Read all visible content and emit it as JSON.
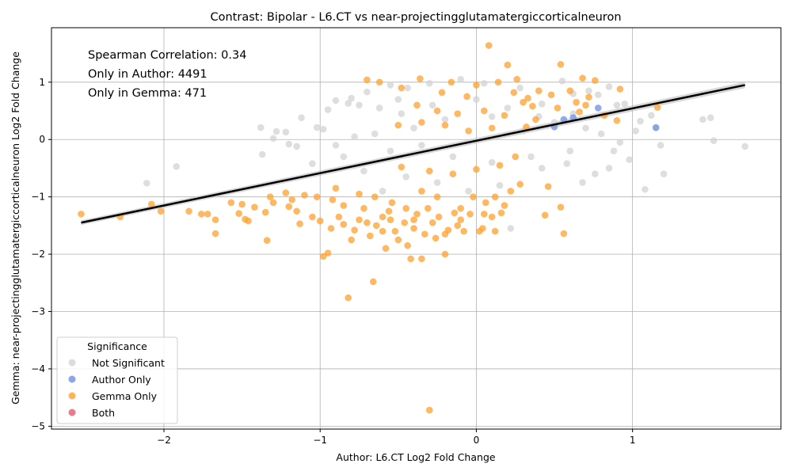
{
  "chart_data": {
    "type": "scatter",
    "title": "Contrast: Bipolar - L6.CT vs near-projectingglutamatergiccorticalneuron",
    "xlabel": "Author: L6.CT Log2 Fold Change",
    "ylabel": "Gemma: near-projectingglutamatergiccorticalneuron Log2 Fold Change",
    "xlim": [
      -2.72,
      1.95
    ],
    "ylim": [
      -5.05,
      1.95
    ],
    "xticks": [
      -2,
      -1,
      0,
      1
    ],
    "yticks": [
      -5,
      -4,
      -3,
      -2,
      -1,
      0,
      1
    ],
    "grid": true,
    "annotations": [
      "Spearman Correlation: 0.34",
      "Only in Author: 4491",
      "Only in Gemma: 471"
    ],
    "legend": {
      "title": "Significance",
      "placement": "lower-left",
      "entries": [
        {
          "label": "Not Significant",
          "color": "#d3d3d3"
        },
        {
          "label": "Author Only",
          "color": "#6f8fe6"
        },
        {
          "label": "Gemma Only",
          "color": "#ffa02e"
        },
        {
          "label": "Both",
          "color": "#e35a6e"
        }
      ]
    },
    "regression_line": {
      "x": [
        -2.53,
        1.72
      ],
      "y": [
        -1.45,
        0.95
      ]
    },
    "series": [
      {
        "name": "Not Significant",
        "color": "#d3d3d3",
        "points": [
          [
            -2.11,
            -0.76
          ],
          [
            -1.92,
            -0.47
          ],
          [
            -1.38,
            0.21
          ],
          [
            -1.37,
            -0.26
          ],
          [
            -1.3,
            0.02
          ],
          [
            -1.28,
            0.14
          ],
          [
            -1.22,
            0.13
          ],
          [
            -1.2,
            -0.08
          ],
          [
            -1.12,
            0.38
          ],
          [
            -1.05,
            -0.42
          ],
          [
            -1.02,
            0.21
          ],
          [
            -0.98,
            0.18
          ],
          [
            -0.95,
            0.52
          ],
          [
            -0.9,
            0.68
          ],
          [
            -0.82,
            0.63
          ],
          [
            -0.8,
            0.72
          ],
          [
            -0.75,
            0.6
          ],
          [
            -0.7,
            0.83
          ],
          [
            -0.62,
            0.55
          ],
          [
            -0.55,
            0.95
          ],
          [
            -0.5,
            0.7
          ],
          [
            -0.44,
            0.9
          ],
          [
            -0.3,
            0.98
          ],
          [
            -0.1,
            1.05
          ],
          [
            0.05,
            0.98
          ],
          [
            0.28,
            0.9
          ],
          [
            0.42,
            0.62
          ],
          [
            0.55,
            1.02
          ],
          [
            0.62,
            0.8
          ],
          [
            0.72,
            0.85
          ],
          [
            0.78,
            0.78
          ],
          [
            0.85,
            0.92
          ],
          [
            0.9,
            0.6
          ],
          [
            0.95,
            0.62
          ],
          [
            1.02,
            0.15
          ],
          [
            1.05,
            0.32
          ],
          [
            1.08,
            -0.87
          ],
          [
            1.12,
            0.42
          ],
          [
            1.15,
            0.2
          ],
          [
            1.18,
            -0.1
          ],
          [
            1.2,
            -0.6
          ],
          [
            1.45,
            0.35
          ],
          [
            1.5,
            0.38
          ],
          [
            1.52,
            -0.02
          ],
          [
            1.72,
            -0.12
          ],
          [
            0.98,
            -0.35
          ],
          [
            0.92,
            -0.05
          ],
          [
            0.85,
            -0.5
          ],
          [
            0.76,
            -0.6
          ],
          [
            0.68,
            -0.75
          ],
          [
            0.58,
            -0.42
          ],
          [
            0.42,
            -0.5
          ],
          [
            0.22,
            -1.55
          ],
          [
            0.15,
            -0.8
          ],
          [
            -0.05,
            -0.9
          ],
          [
            -0.25,
            -0.75
          ],
          [
            -0.45,
            -0.65
          ],
          [
            -0.6,
            -0.9
          ],
          [
            -0.72,
            -0.55
          ],
          [
            -0.85,
            -0.3
          ],
          [
            -1.15,
            -0.12
          ],
          [
            -0.65,
            0.1
          ],
          [
            -0.4,
            0.2
          ],
          [
            -0.2,
            0.35
          ],
          [
            0.1,
            0.4
          ],
          [
            0.3,
            0.15
          ],
          [
            0.5,
            0.3
          ],
          [
            0.7,
            0.2
          ],
          [
            0.6,
            -0.2
          ],
          [
            0.35,
            -0.3
          ],
          [
            0.1,
            -0.4
          ],
          [
            -0.15,
            -0.3
          ],
          [
            -0.35,
            -0.1
          ],
          [
            -0.55,
            -0.2
          ],
          [
            -0.78,
            0.05
          ],
          [
            -0.9,
            -0.1
          ],
          [
            -0.48,
            0.45
          ],
          [
            -0.28,
            0.6
          ],
          [
            0.0,
            0.7
          ],
          [
            0.2,
            0.55
          ],
          [
            0.4,
            0.4
          ],
          [
            0.62,
            0.45
          ],
          [
            0.8,
            0.1
          ],
          [
            0.88,
            -0.2
          ]
        ]
      },
      {
        "name": "Author Only",
        "color": "#6f8fe6",
        "points": [
          [
            0.5,
            0.22
          ],
          [
            0.56,
            0.35
          ],
          [
            0.62,
            0.38
          ],
          [
            0.78,
            0.55
          ],
          [
            1.15,
            0.21
          ]
        ]
      },
      {
        "name": "Gemma Only",
        "color": "#ffa02e",
        "points": [
          [
            -2.53,
            -1.3
          ],
          [
            -2.28,
            -1.35
          ],
          [
            -2.08,
            -1.13
          ],
          [
            -2.02,
            -1.25
          ],
          [
            -1.84,
            -1.25
          ],
          [
            -1.76,
            -1.3
          ],
          [
            -1.72,
            -1.3
          ],
          [
            -1.67,
            -1.4
          ],
          [
            -1.67,
            -1.64
          ],
          [
            -1.57,
            -1.1
          ],
          [
            -1.52,
            -1.29
          ],
          [
            -1.5,
            -1.13
          ],
          [
            -1.48,
            -1.39
          ],
          [
            -1.46,
            -1.42
          ],
          [
            -1.42,
            -1.18
          ],
          [
            -1.35,
            -1.27
          ],
          [
            -1.34,
            -1.76
          ],
          [
            -1.32,
            -1.0
          ],
          [
            -1.3,
            -1.1
          ],
          [
            -1.22,
            -0.93
          ],
          [
            -1.2,
            -1.17
          ],
          [
            -1.18,
            -1.05
          ],
          [
            -1.15,
            -1.25
          ],
          [
            -1.13,
            -1.47
          ],
          [
            -1.1,
            -0.97
          ],
          [
            -1.05,
            -1.35
          ],
          [
            -1.02,
            -1.0
          ],
          [
            -1.0,
            -1.42
          ],
          [
            -0.98,
            -2.04
          ],
          [
            -0.95,
            -1.98
          ],
          [
            -0.93,
            -1.55
          ],
          [
            -0.9,
            -0.85
          ],
          [
            -0.88,
            -1.35
          ],
          [
            -0.85,
            -1.48
          ],
          [
            -0.82,
            -2.76
          ],
          [
            -0.8,
            -1.75
          ],
          [
            -0.78,
            -1.58
          ],
          [
            -0.75,
            -1.4
          ],
          [
            -0.72,
            -1.2
          ],
          [
            -0.7,
            1.04
          ],
          [
            -0.68,
            -1.68
          ],
          [
            -0.66,
            -2.48
          ],
          [
            -0.64,
            -1.5
          ],
          [
            -0.62,
            1.0
          ],
          [
            -0.6,
            -1.35
          ],
          [
            -0.58,
            -1.9
          ],
          [
            -0.56,
            -1.25
          ],
          [
            -0.54,
            -1.1
          ],
          [
            -0.52,
            -1.6
          ],
          [
            -0.5,
            -1.75
          ],
          [
            -0.48,
            0.9
          ],
          [
            -0.46,
            -1.45
          ],
          [
            -0.44,
            -1.85
          ],
          [
            -0.42,
            -2.08
          ],
          [
            -0.4,
            -1.55
          ],
          [
            -0.38,
            -1.3
          ],
          [
            -0.36,
            1.06
          ],
          [
            -0.35,
            -2.08
          ],
          [
            -0.33,
            -1.65
          ],
          [
            -0.31,
            -1.2
          ],
          [
            -0.3,
            -4.72
          ],
          [
            -0.28,
            -1.45
          ],
          [
            -0.26,
            -1.72
          ],
          [
            -0.24,
            -1.35
          ],
          [
            -0.22,
            0.82
          ],
          [
            -0.2,
            -2.0
          ],
          [
            -0.18,
            -1.58
          ],
          [
            -0.16,
            1.0
          ],
          [
            -0.14,
            -1.28
          ],
          [
            -0.12,
            -1.5
          ],
          [
            -0.1,
            -1.2
          ],
          [
            -0.08,
            -1.6
          ],
          [
            -0.06,
            0.75
          ],
          [
            -0.04,
            -1.3
          ],
          [
            -0.02,
            -1.0
          ],
          [
            0.0,
            0.95
          ],
          [
            0.02,
            -1.6
          ],
          [
            0.04,
            -1.55
          ],
          [
            0.06,
            -1.1
          ],
          [
            0.08,
            1.64
          ],
          [
            0.1,
            -1.35
          ],
          [
            0.12,
            -1.6
          ],
          [
            0.14,
            1.0
          ],
          [
            0.16,
            -1.28
          ],
          [
            0.18,
            -1.15
          ],
          [
            0.2,
            1.3
          ],
          [
            0.22,
            -0.9
          ],
          [
            0.24,
            0.82
          ],
          [
            0.26,
            1.05
          ],
          [
            0.28,
            -0.78
          ],
          [
            0.3,
            0.65
          ],
          [
            0.33,
            0.72
          ],
          [
            0.36,
            0.58
          ],
          [
            0.4,
            0.85
          ],
          [
            0.44,
            -1.32
          ],
          [
            0.46,
            -0.82
          ],
          [
            0.48,
            0.78
          ],
          [
            0.52,
            0.55
          ],
          [
            0.54,
            1.31
          ],
          [
            0.54,
            -1.18
          ],
          [
            0.56,
            -1.64
          ],
          [
            0.6,
            0.85
          ],
          [
            0.64,
            0.65
          ],
          [
            0.66,
            0.48
          ],
          [
            0.68,
            1.07
          ],
          [
            0.7,
            0.6
          ],
          [
            0.72,
            0.74
          ],
          [
            0.76,
            1.03
          ],
          [
            0.82,
            0.42
          ],
          [
            0.9,
            0.33
          ],
          [
            0.92,
            0.88
          ],
          [
            1.16,
            0.56
          ],
          [
            -0.38,
            0.6
          ],
          [
            -0.25,
            0.5
          ],
          [
            -0.12,
            0.45
          ],
          [
            0.05,
            0.5
          ],
          [
            0.18,
            0.42
          ],
          [
            0.38,
            0.35
          ],
          [
            -0.48,
            -0.48
          ],
          [
            -0.3,
            -0.55
          ],
          [
            -0.15,
            -0.6
          ],
          [
            0.0,
            -0.52
          ],
          [
            0.15,
            -0.45
          ],
          [
            -0.55,
            -1.4
          ],
          [
            -0.4,
            -1.4
          ],
          [
            -0.25,
            -1.0
          ],
          [
            -0.1,
            -1.4
          ],
          [
            0.05,
            -1.3
          ],
          [
            -0.65,
            -1.0
          ],
          [
            -0.75,
            -0.95
          ],
          [
            -0.85,
            -1.15
          ],
          [
            -0.92,
            -1.05
          ],
          [
            -0.35,
            -0.9
          ],
          [
            -0.2,
            -1.65
          ],
          [
            -0.45,
            -1.2
          ],
          [
            -0.6,
            -1.6
          ],
          [
            -0.7,
            -1.45
          ],
          [
            0.12,
            -1.0
          ],
          [
            0.25,
            -0.3
          ],
          [
            0.1,
            0.2
          ],
          [
            -0.05,
            0.15
          ],
          [
            -0.2,
            0.25
          ],
          [
            -0.35,
            0.3
          ],
          [
            -0.5,
            0.25
          ],
          [
            0.32,
            0.22
          ]
        ]
      },
      {
        "name": "Both",
        "color": "#e35a6e",
        "points": []
      }
    ]
  }
}
